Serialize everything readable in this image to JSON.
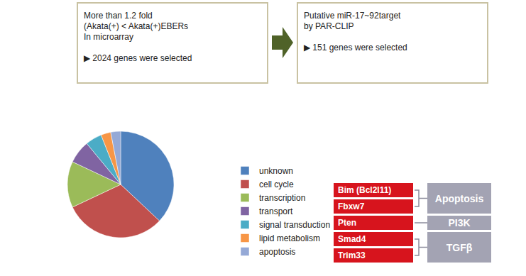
{
  "flow": {
    "boxes": [
      {
        "lines": [
          "More than 1.2 fold",
          "(Akata(+) < Akata(+)EBERs",
          "In microarray",
          "▶ 2024 genes were selected"
        ]
      },
      {
        "lines": [
          "Putative miR-17~92target",
          "by PAR-CLIP",
          "▶ 151 genes were selected"
        ]
      }
    ]
  },
  "chart_data": {
    "type": "pie",
    "categories": [
      "unknown",
      "cell cycle",
      "transcription",
      "transport",
      "signal transduction",
      "lipid metabolism",
      "apoptosis"
    ],
    "values": [
      37,
      31,
      14,
      7,
      5,
      3,
      3
    ],
    "colors": [
      "#4f81bd",
      "#c0504d",
      "#9bbb59",
      "#8064a2",
      "#4bacc6",
      "#f79646",
      "#95a9d6"
    ],
    "legend": "right",
    "data_labels": false
  },
  "targets": {
    "groups": [
      {
        "label": "Apoptosis",
        "genes": [
          "Bim (Bcl2l11)",
          "Fbxw7"
        ]
      },
      {
        "label": "PI3K",
        "genes": [
          "Pten"
        ]
      },
      {
        "label": "TGFβ",
        "genes": [
          "Smad4",
          "Trim33"
        ]
      }
    ]
  }
}
